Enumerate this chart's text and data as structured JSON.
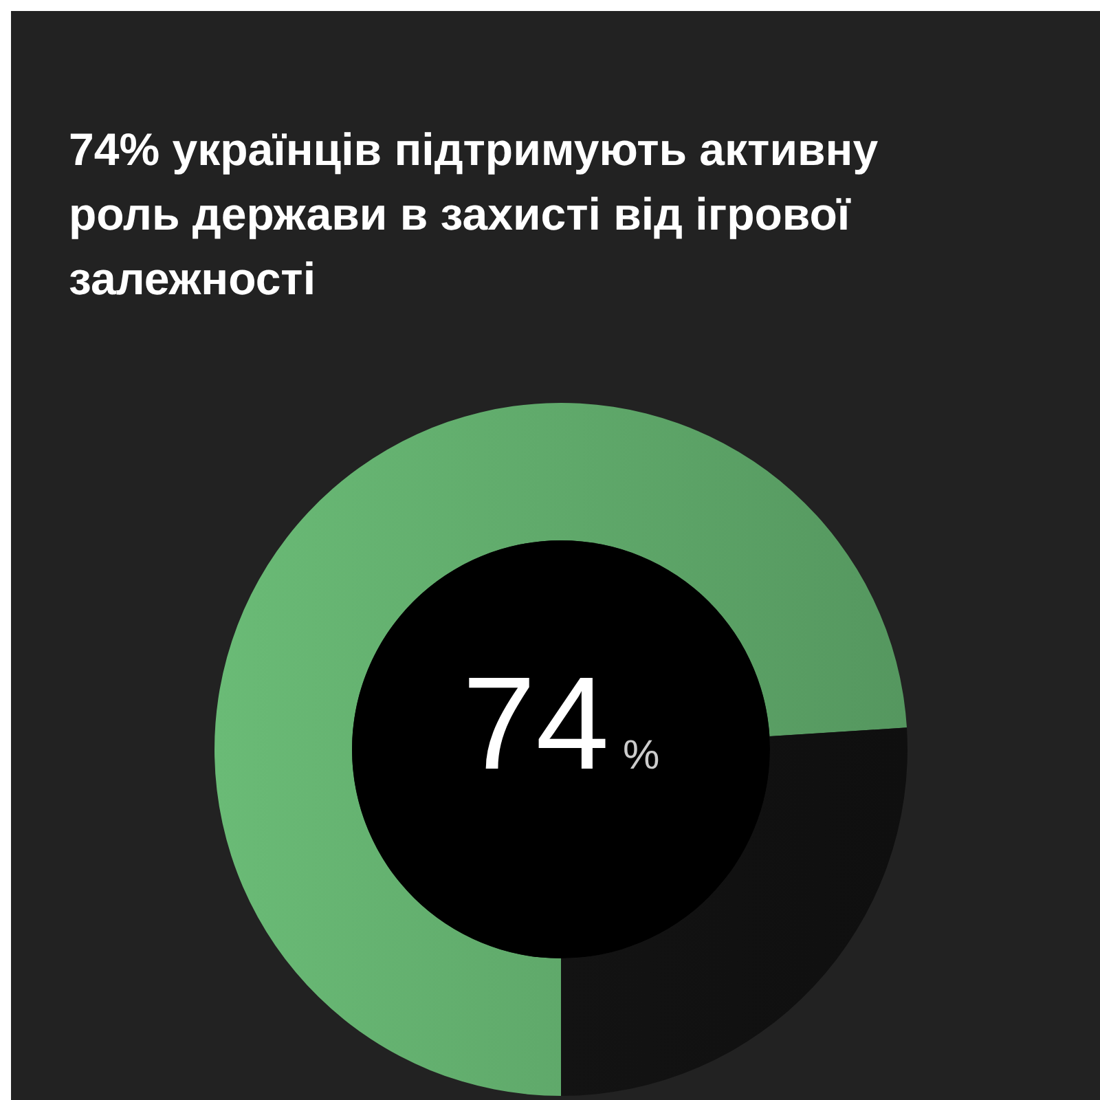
{
  "chart_data": {
    "type": "donut",
    "title": "74% українців підтримують активну роль держави в захисті від ігрової залежності",
    "categories": [
      null,
      null
    ],
    "values": [
      74,
      26
    ],
    "colors": [
      "#5fa86a",
      "#111111"
    ],
    "value_labels": [
      "74%",
      null
    ]
  }
}
